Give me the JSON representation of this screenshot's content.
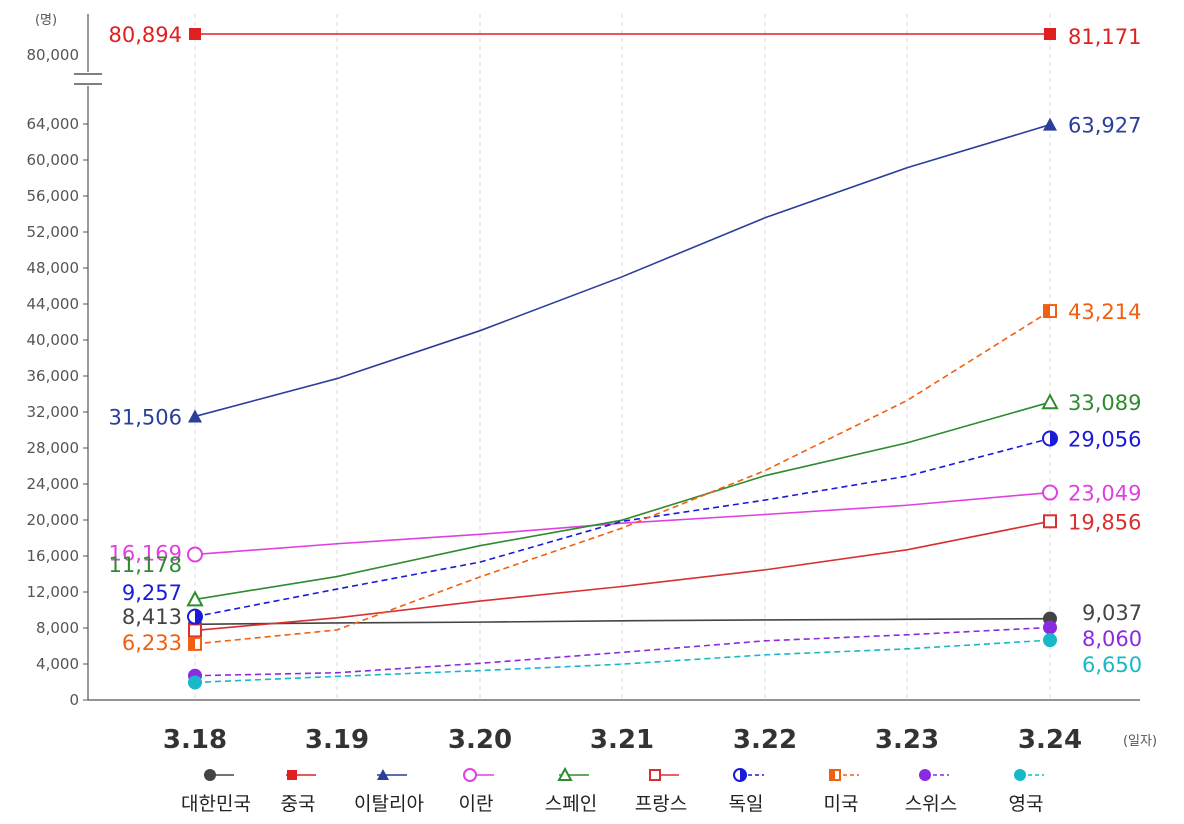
{
  "chart_data": {
    "type": "line",
    "y_unit": "(명)",
    "x_unit": "(일자)",
    "categories": [
      "3.18",
      "3.19",
      "3.20",
      "3.21",
      "3.22",
      "3.23",
      "3.24"
    ],
    "ylim": [
      0,
      66000
    ],
    "y_ticks": [
      "0",
      "4,000",
      "8,000",
      "12,000",
      "16,000",
      "20,000",
      "24,000",
      "28,000",
      "32,000",
      "36,000",
      "40,000",
      "44,000",
      "48,000",
      "52,000",
      "56,000",
      "60,000",
      "64,000"
    ],
    "y_break_tick": "80,000",
    "axis_break": true,
    "grid": {
      "vertical": true,
      "dashed": true
    },
    "legend_position": "bottom",
    "series": [
      {
        "name": "대한민국",
        "color": "#444444",
        "marker": "circle-filled",
        "dashed": false,
        "values": [
          8413,
          8565,
          8652,
          8799,
          8897,
          8961,
          9037
        ],
        "start_label": "8,413",
        "end_label": "9,037"
      },
      {
        "name": "중국",
        "color": "#e02020",
        "marker": "square-filled",
        "dashed": false,
        "values": [
          80894,
          80928,
          80967,
          81008,
          81054,
          81093,
          81171
        ],
        "start_label": "80,894",
        "end_label": "81,171"
      },
      {
        "name": "이탈리아",
        "color": "#2a3f9a",
        "marker": "triangle-filled",
        "dashed": false,
        "values": [
          31506,
          35713,
          41035,
          47021,
          53578,
          59138,
          63927
        ],
        "start_label": "31,506",
        "end_label": "63,927"
      },
      {
        "name": "이란",
        "color": "#e040e0",
        "marker": "circle-open",
        "dashed": false,
        "values": [
          16169,
          17361,
          18407,
          19644,
          20610,
          21638,
          23049
        ],
        "start_label": "16,169",
        "end_label": "23,049"
      },
      {
        "name": "스페인",
        "color": "#2e8b2e",
        "marker": "triangle-open",
        "dashed": false,
        "values": [
          11178,
          13716,
          17147,
          19980,
          24926,
          28572,
          33089
        ],
        "start_label": "11,178",
        "end_label": "33,089"
      },
      {
        "name": "프랑스",
        "color": "#d83030",
        "marker": "square-open",
        "dashed": false,
        "values": [
          7730,
          9134,
          10995,
          12612,
          14459,
          16689,
          19856
        ],
        "start_label": "",
        "end_label": "19,856"
      },
      {
        "name": "독일",
        "color": "#1a1adb",
        "marker": "circle-half",
        "dashed": true,
        "values": [
          9257,
          12327,
          15320,
          19848,
          22213,
          24873,
          29056
        ],
        "start_label": "9,257",
        "end_label": "29,056"
      },
      {
        "name": "미국",
        "color": "#f06010",
        "marker": "square-half",
        "dashed": true,
        "values": [
          6233,
          7786,
          13680,
          19101,
          25493,
          33276,
          43214
        ],
        "start_label": "6,233",
        "end_label": "43,214"
      },
      {
        "name": "스위스",
        "color": "#8a2be2",
        "marker": "circle-filled",
        "dashed": true,
        "values": [
          2700,
          3028,
          4075,
          5294,
          6575,
          7245,
          8060
        ],
        "start_label": "",
        "end_label": "8,060"
      },
      {
        "name": "영국",
        "color": "#17b8c8",
        "marker": "circle-filled",
        "dashed": true,
        "values": [
          1950,
          2626,
          3269,
          3983,
          5018,
          5683,
          6650
        ],
        "start_label": "",
        "end_label": "6,650"
      }
    ]
  }
}
